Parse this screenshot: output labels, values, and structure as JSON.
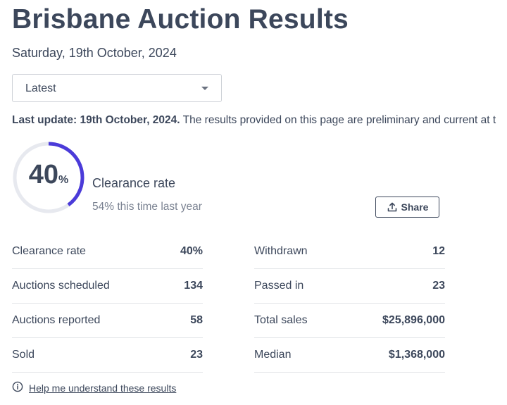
{
  "page": {
    "title": "Brisbane Auction Results",
    "date": "Saturday, 19th October, 2024"
  },
  "filter": {
    "selected": "Latest"
  },
  "notice": {
    "bold": "Last update: 19th October, 2024.",
    "text": " The results provided on this page are preliminary and current at t"
  },
  "summary": {
    "rate_number": "40",
    "rate_symbol": "%",
    "rate_fraction": 0.4,
    "label": "Clearance rate",
    "comparison": "54% this time last year",
    "ring_color": "#4b3bd9",
    "track_color": "#e7e9ef"
  },
  "share": {
    "label": "Share",
    "icon": "upload-icon"
  },
  "stats_left": [
    {
      "label": "Clearance rate",
      "value": "40%"
    },
    {
      "label": "Auctions scheduled",
      "value": "134"
    },
    {
      "label": "Auctions reported",
      "value": "58"
    },
    {
      "label": "Sold",
      "value": "23"
    }
  ],
  "stats_right": [
    {
      "label": "Withdrawn",
      "value": "12"
    },
    {
      "label": "Passed in",
      "value": "23"
    },
    {
      "label": "Total sales",
      "value": "$25,896,000"
    },
    {
      "label": "Median",
      "value": "$1,368,000"
    }
  ],
  "help": {
    "label": "Help me understand these results",
    "icon": "info-icon"
  }
}
